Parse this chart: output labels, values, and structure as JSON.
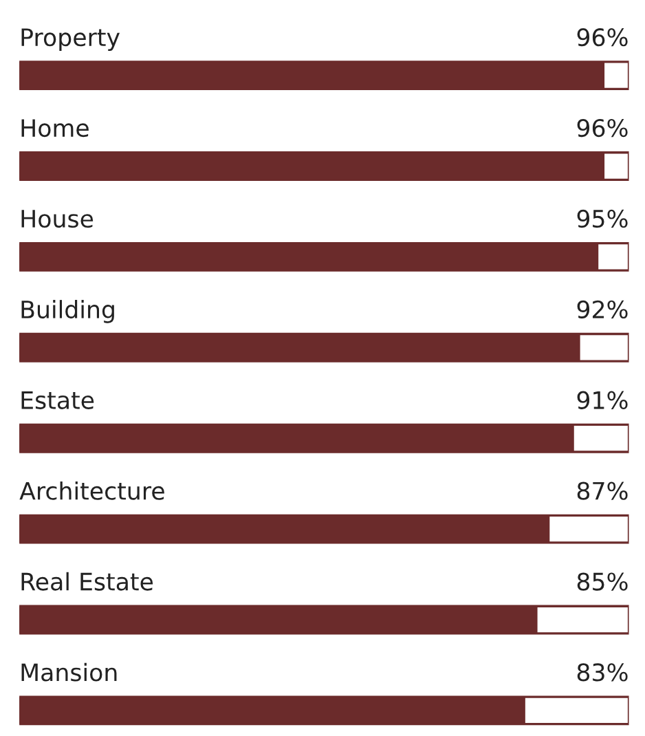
{
  "chart_data": {
    "type": "bar",
    "orientation": "horizontal",
    "categories": [
      "Property",
      "Home",
      "House",
      "Building",
      "Estate",
      "Architecture",
      "Real Estate",
      "Mansion"
    ],
    "values": [
      96,
      96,
      95,
      92,
      91,
      87,
      85,
      83
    ],
    "value_labels": [
      "96%",
      "96%",
      "95%",
      "92%",
      "91%",
      "87%",
      "85%",
      "83%"
    ],
    "color": "#6b2b2b",
    "xlim": [
      0,
      100
    ]
  }
}
